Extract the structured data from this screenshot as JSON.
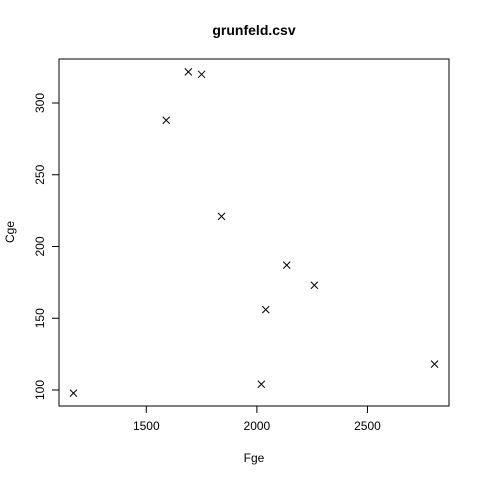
{
  "chart_data": {
    "type": "scatter",
    "title": "grunfeld.csv",
    "xlabel": "Fge",
    "ylabel": "Cge",
    "xlim": [
      1170.6,
      2803.3
    ],
    "ylim": [
      97.8,
      321.7
    ],
    "x_ticks": [
      1500,
      2000,
      2500
    ],
    "y_ticks": [
      100,
      150,
      200,
      250,
      300
    ],
    "marker": "x",
    "grid": false,
    "legend": "none",
    "points": [
      {
        "x": 1170.6,
        "y": 97.8
      },
      {
        "x": 1590.0,
        "y": 288.0
      },
      {
        "x": 1690.0,
        "y": 321.7
      },
      {
        "x": 1750.0,
        "y": 320.0
      },
      {
        "x": 1840.0,
        "y": 221.0
      },
      {
        "x": 2020.0,
        "y": 104.0
      },
      {
        "x": 2040.0,
        "y": 156.0
      },
      {
        "x": 2135.0,
        "y": 187.0
      },
      {
        "x": 2260.0,
        "y": 173.0
      },
      {
        "x": 2803.3,
        "y": 118.0
      }
    ]
  }
}
